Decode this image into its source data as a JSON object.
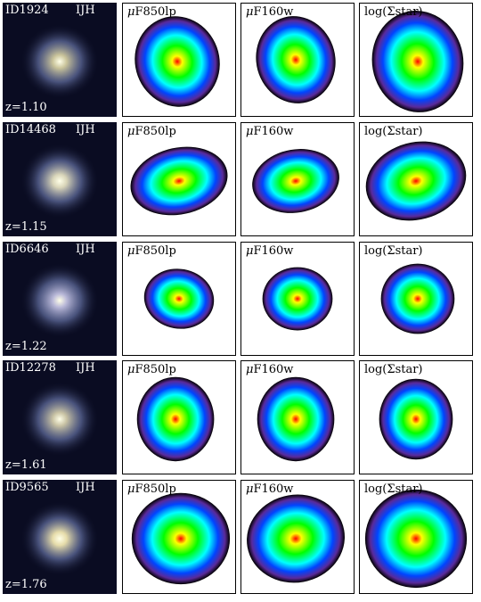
{
  "colorbar_stops": [
    "#ff0000",
    "#ffff00",
    "#00ff00",
    "#00ffff",
    "#0044ff",
    "#5a2a9a",
    "#000000"
  ],
  "panel_labels": {
    "color_band": "IJH",
    "mu_symbol": "μ",
    "f850": "F850lp",
    "f160": "F160w",
    "mass": "log(Σstar)"
  },
  "galaxies": [
    {
      "id": "ID1924",
      "z": "z=1.10"
    },
    {
      "id": "ID14468",
      "z": "z=1.15"
    },
    {
      "id": "ID6646",
      "z": "z=1.22"
    },
    {
      "id": "ID12278",
      "z": "z=1.61"
    },
    {
      "id": "ID9565",
      "z": "z=1.76"
    }
  ]
}
